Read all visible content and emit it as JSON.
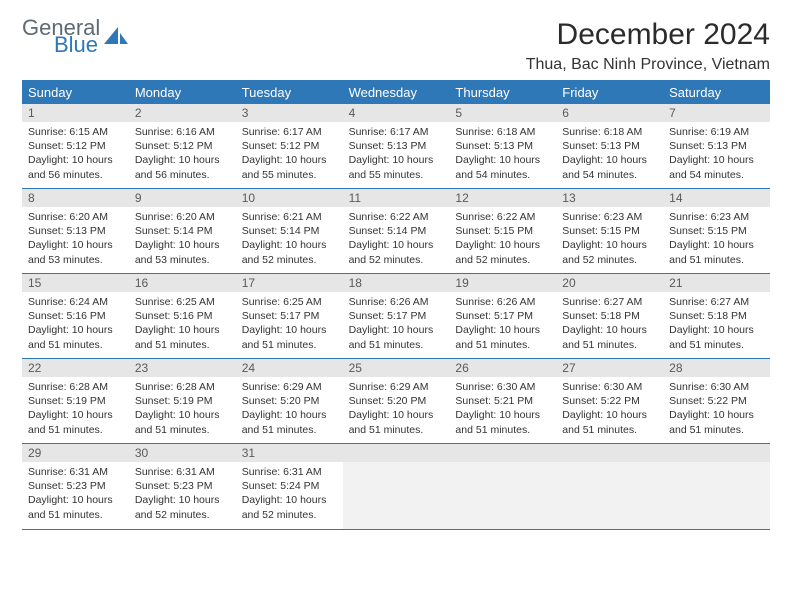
{
  "logo": {
    "line1": "General",
    "line2": "Blue"
  },
  "title": "December 2024",
  "location": "Thua, Bac Ninh Province, Vietnam",
  "colors": {
    "header_blue": "#2f78b8",
    "daynum_bg": "#e6e6e6",
    "empty_body_bg": "#f2f2f2",
    "text": "#333333",
    "logo_gray": "#5f6a72"
  },
  "fonts": {
    "title_pt": 30,
    "location_pt": 16,
    "dow_pt": 13,
    "daynum_pt": 12,
    "body_pt": 10.5
  },
  "daysOfWeek": [
    "Sunday",
    "Monday",
    "Tuesday",
    "Wednesday",
    "Thursday",
    "Friday",
    "Saturday"
  ],
  "days": [
    {
      "n": "1",
      "sunrise": "Sunrise: 6:15 AM",
      "sunset": "Sunset: 5:12 PM",
      "daylight": "Daylight: 10 hours and 56 minutes."
    },
    {
      "n": "2",
      "sunrise": "Sunrise: 6:16 AM",
      "sunset": "Sunset: 5:12 PM",
      "daylight": "Daylight: 10 hours and 56 minutes."
    },
    {
      "n": "3",
      "sunrise": "Sunrise: 6:17 AM",
      "sunset": "Sunset: 5:12 PM",
      "daylight": "Daylight: 10 hours and 55 minutes."
    },
    {
      "n": "4",
      "sunrise": "Sunrise: 6:17 AM",
      "sunset": "Sunset: 5:13 PM",
      "daylight": "Daylight: 10 hours and 55 minutes."
    },
    {
      "n": "5",
      "sunrise": "Sunrise: 6:18 AM",
      "sunset": "Sunset: 5:13 PM",
      "daylight": "Daylight: 10 hours and 54 minutes."
    },
    {
      "n": "6",
      "sunrise": "Sunrise: 6:18 AM",
      "sunset": "Sunset: 5:13 PM",
      "daylight": "Daylight: 10 hours and 54 minutes."
    },
    {
      "n": "7",
      "sunrise": "Sunrise: 6:19 AM",
      "sunset": "Sunset: 5:13 PM",
      "daylight": "Daylight: 10 hours and 54 minutes."
    },
    {
      "n": "8",
      "sunrise": "Sunrise: 6:20 AM",
      "sunset": "Sunset: 5:13 PM",
      "daylight": "Daylight: 10 hours and 53 minutes."
    },
    {
      "n": "9",
      "sunrise": "Sunrise: 6:20 AM",
      "sunset": "Sunset: 5:14 PM",
      "daylight": "Daylight: 10 hours and 53 minutes."
    },
    {
      "n": "10",
      "sunrise": "Sunrise: 6:21 AM",
      "sunset": "Sunset: 5:14 PM",
      "daylight": "Daylight: 10 hours and 52 minutes."
    },
    {
      "n": "11",
      "sunrise": "Sunrise: 6:22 AM",
      "sunset": "Sunset: 5:14 PM",
      "daylight": "Daylight: 10 hours and 52 minutes."
    },
    {
      "n": "12",
      "sunrise": "Sunrise: 6:22 AM",
      "sunset": "Sunset: 5:15 PM",
      "daylight": "Daylight: 10 hours and 52 minutes."
    },
    {
      "n": "13",
      "sunrise": "Sunrise: 6:23 AM",
      "sunset": "Sunset: 5:15 PM",
      "daylight": "Daylight: 10 hours and 52 minutes."
    },
    {
      "n": "14",
      "sunrise": "Sunrise: 6:23 AM",
      "sunset": "Sunset: 5:15 PM",
      "daylight": "Daylight: 10 hours and 51 minutes."
    },
    {
      "n": "15",
      "sunrise": "Sunrise: 6:24 AM",
      "sunset": "Sunset: 5:16 PM",
      "daylight": "Daylight: 10 hours and 51 minutes."
    },
    {
      "n": "16",
      "sunrise": "Sunrise: 6:25 AM",
      "sunset": "Sunset: 5:16 PM",
      "daylight": "Daylight: 10 hours and 51 minutes."
    },
    {
      "n": "17",
      "sunrise": "Sunrise: 6:25 AM",
      "sunset": "Sunset: 5:17 PM",
      "daylight": "Daylight: 10 hours and 51 minutes."
    },
    {
      "n": "18",
      "sunrise": "Sunrise: 6:26 AM",
      "sunset": "Sunset: 5:17 PM",
      "daylight": "Daylight: 10 hours and 51 minutes."
    },
    {
      "n": "19",
      "sunrise": "Sunrise: 6:26 AM",
      "sunset": "Sunset: 5:17 PM",
      "daylight": "Daylight: 10 hours and 51 minutes."
    },
    {
      "n": "20",
      "sunrise": "Sunrise: 6:27 AM",
      "sunset": "Sunset: 5:18 PM",
      "daylight": "Daylight: 10 hours and 51 minutes."
    },
    {
      "n": "21",
      "sunrise": "Sunrise: 6:27 AM",
      "sunset": "Sunset: 5:18 PM",
      "daylight": "Daylight: 10 hours and 51 minutes."
    },
    {
      "n": "22",
      "sunrise": "Sunrise: 6:28 AM",
      "sunset": "Sunset: 5:19 PM",
      "daylight": "Daylight: 10 hours and 51 minutes."
    },
    {
      "n": "23",
      "sunrise": "Sunrise: 6:28 AM",
      "sunset": "Sunset: 5:19 PM",
      "daylight": "Daylight: 10 hours and 51 minutes."
    },
    {
      "n": "24",
      "sunrise": "Sunrise: 6:29 AM",
      "sunset": "Sunset: 5:20 PM",
      "daylight": "Daylight: 10 hours and 51 minutes."
    },
    {
      "n": "25",
      "sunrise": "Sunrise: 6:29 AM",
      "sunset": "Sunset: 5:20 PM",
      "daylight": "Daylight: 10 hours and 51 minutes."
    },
    {
      "n": "26",
      "sunrise": "Sunrise: 6:30 AM",
      "sunset": "Sunset: 5:21 PM",
      "daylight": "Daylight: 10 hours and 51 minutes."
    },
    {
      "n": "27",
      "sunrise": "Sunrise: 6:30 AM",
      "sunset": "Sunset: 5:22 PM",
      "daylight": "Daylight: 10 hours and 51 minutes."
    },
    {
      "n": "28",
      "sunrise": "Sunrise: 6:30 AM",
      "sunset": "Sunset: 5:22 PM",
      "daylight": "Daylight: 10 hours and 51 minutes."
    },
    {
      "n": "29",
      "sunrise": "Sunrise: 6:31 AM",
      "sunset": "Sunset: 5:23 PM",
      "daylight": "Daylight: 10 hours and 51 minutes."
    },
    {
      "n": "30",
      "sunrise": "Sunrise: 6:31 AM",
      "sunset": "Sunset: 5:23 PM",
      "daylight": "Daylight: 10 hours and 52 minutes."
    },
    {
      "n": "31",
      "sunrise": "Sunrise: 6:31 AM",
      "sunset": "Sunset: 5:24 PM",
      "daylight": "Daylight: 10 hours and 52 minutes."
    }
  ],
  "trailingEmpty": 4
}
